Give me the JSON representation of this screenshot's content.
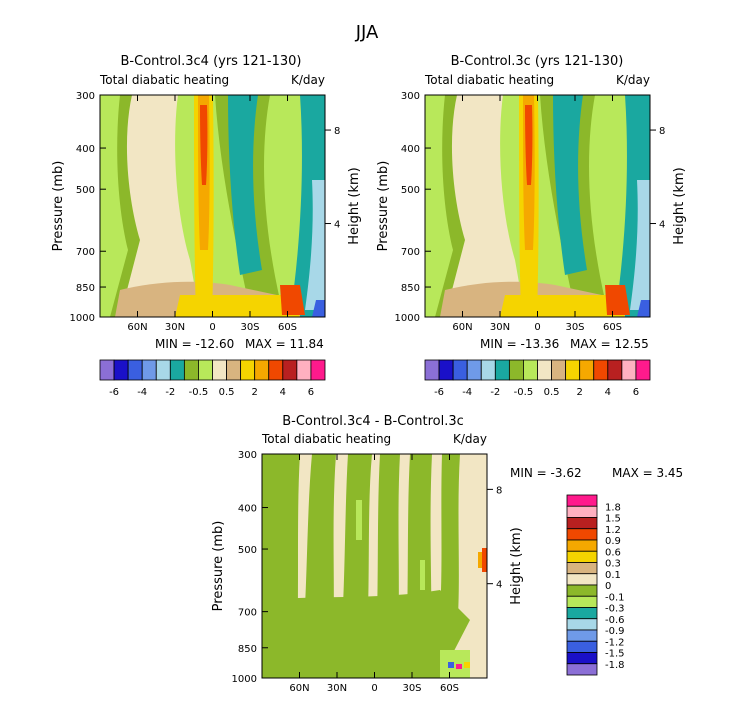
{
  "figure_title": "JJA",
  "colors": {
    "full": [
      "#8b6fd6",
      "#1a10c8",
      "#3a5fe0",
      "#6f9ae8",
      "#a8d8e8",
      "#1aa8a0",
      "#8cb82a",
      "#b8e85a",
      "#f2e6c4",
      "#d8b480",
      "#f5d400",
      "#f5a800",
      "#f04800",
      "#b82020",
      "#ffb0c0",
      "#ff1a8c"
    ],
    "diff": [
      "#8b6fd6",
      "#1a10c8",
      "#3a5fe0",
      "#6f9ae8",
      "#a8d8e8",
      "#1aa8a0",
      "#b8e85a",
      "#8cb82a",
      "#f2e6c4",
      "#d8b480",
      "#f5d400",
      "#f5a800",
      "#f04800",
      "#b82020",
      "#ffb0c0",
      "#ff1a8c"
    ]
  },
  "chart_data": [
    {
      "type": "heatmap",
      "title": "B-Control.3c4 (yrs 121-130)",
      "subtitle_left": "Total diabatic heating",
      "subtitle_right": "K/day",
      "ylabel": "Pressure (mb)",
      "ylabel_right": "Height (km)",
      "x_ticks": [
        "60N",
        "30N",
        "0",
        "30S",
        "60S"
      ],
      "x_values": [
        60,
        30,
        0,
        -30,
        -60
      ],
      "xlim": [
        90,
        -90
      ],
      "y_ticks": [
        "300",
        "400",
        "500",
        "700",
        "850",
        "1000"
      ],
      "y_values": [
        300,
        400,
        500,
        700,
        850,
        1000
      ],
      "ylim": [
        300,
        1000
      ],
      "right_ticks": [
        "8",
        "4"
      ],
      "right_values": [
        8,
        4
      ],
      "min_text": "MIN = -12.60",
      "max_text": "MAX =  11.84",
      "min": -12.6,
      "max": 11.84,
      "colorbar_labels": [
        "-6",
        "-4",
        "-2",
        "-0.5",
        "0.5",
        "2",
        "4",
        "6"
      ]
    },
    {
      "type": "heatmap",
      "title": "B-Control.3c (yrs 121-130)",
      "subtitle_left": "Total diabatic heating",
      "subtitle_right": "K/day",
      "ylabel": "Pressure (mb)",
      "ylabel_right": "Height (km)",
      "x_ticks": [
        "60N",
        "30N",
        "0",
        "30S",
        "60S"
      ],
      "x_values": [
        60,
        30,
        0,
        -30,
        -60
      ],
      "xlim": [
        90,
        -90
      ],
      "y_ticks": [
        "300",
        "400",
        "500",
        "700",
        "850",
        "1000"
      ],
      "y_values": [
        300,
        400,
        500,
        700,
        850,
        1000
      ],
      "ylim": [
        300,
        1000
      ],
      "right_ticks": [
        "8",
        "4"
      ],
      "right_values": [
        8,
        4
      ],
      "min_text": "MIN = -13.36",
      "max_text": "MAX =  12.55",
      "min": -13.36,
      "max": 12.55,
      "colorbar_labels": [
        "-6",
        "-4",
        "-2",
        "-0.5",
        "0.5",
        "2",
        "4",
        "6"
      ]
    },
    {
      "type": "heatmap",
      "title": "B-Control.3c4 - B-Control.3c",
      "subtitle_left": "Total diabatic heating",
      "subtitle_right": "K/day",
      "ylabel": "Pressure (mb)",
      "ylabel_right": "Height (km)",
      "x_ticks": [
        "60N",
        "30N",
        "0",
        "30S",
        "60S"
      ],
      "x_values": [
        60,
        30,
        0,
        -30,
        -60
      ],
      "xlim": [
        90,
        -90
      ],
      "y_ticks": [
        "300",
        "400",
        "500",
        "700",
        "850",
        "1000"
      ],
      "y_values": [
        300,
        400,
        500,
        700,
        850,
        1000
      ],
      "ylim": [
        300,
        1000
      ],
      "right_ticks": [
        "8",
        "4"
      ],
      "right_values": [
        8,
        4
      ],
      "min_text": "MIN =   -3.62",
      "max_text": "MAX =    3.45",
      "min": -3.62,
      "max": 3.45,
      "colorbar_labels": [
        "1.8",
        "1.5",
        "1.2",
        "0.9",
        "0.6",
        "0.3",
        "0.1",
        "0",
        "-0.1",
        "-0.3",
        "-0.6",
        "-0.9",
        "-1.2",
        "-1.5",
        "-1.8"
      ]
    }
  ]
}
